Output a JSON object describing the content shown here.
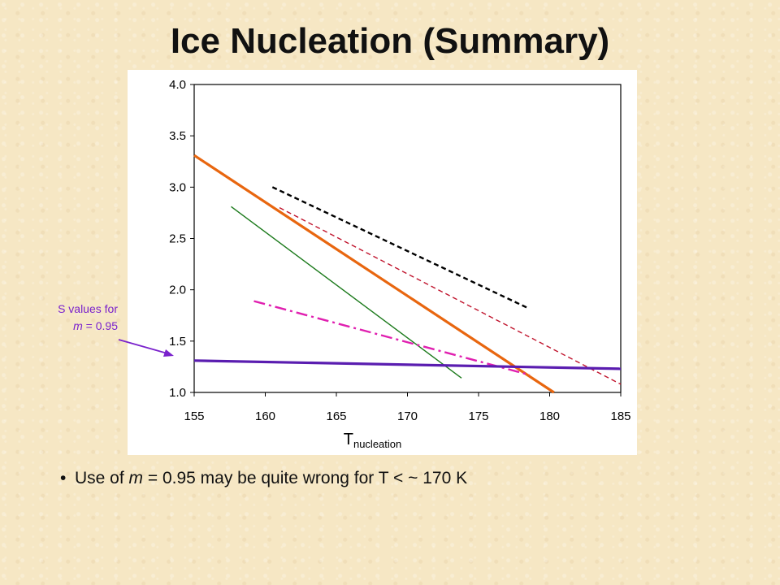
{
  "slide": {
    "title": "Ice Nucleation (Summary)",
    "callout": {
      "line1": "S values for",
      "line2_var": "m",
      "line2_rest": " = 0.95",
      "color": "#7a22cc"
    },
    "bullet": {
      "prefix": "Use of ",
      "var": "m",
      "rest": " = 0.95 may be quite wrong for T < ~ 170 K"
    }
  },
  "chart_data": {
    "type": "line",
    "title": "",
    "xlabel": "T",
    "xlabel_subscript": "nucleation",
    "ylabel": "",
    "xlim": [
      155,
      185
    ],
    "ylim": [
      1.0,
      4.0
    ],
    "x_ticks": [
      "155",
      "160",
      "165",
      "170",
      "175",
      "180",
      "185"
    ],
    "y_ticks": [
      "1.0",
      "1.5",
      "2.0",
      "2.5",
      "3.0",
      "3.5",
      "4.0"
    ],
    "grid": false,
    "legend": "none",
    "series": [
      {
        "color": "#e8660f",
        "style": "solid",
        "weight": "thick",
        "points": [
          [
            155,
            3.31
          ],
          [
            180.3,
            1.0
          ]
        ]
      },
      {
        "color": "#000000",
        "style": "dashed",
        "weight": "medium",
        "points": [
          [
            160.5,
            3.0
          ],
          [
            178.5,
            1.82
          ]
        ]
      },
      {
        "color": "#c0142d",
        "style": "dashed",
        "weight": "thin",
        "points": [
          [
            161,
            2.8
          ],
          [
            185,
            1.08
          ]
        ]
      },
      {
        "color": "#1c7a1c",
        "style": "solid",
        "weight": "thin",
        "points": [
          [
            157.6,
            2.81
          ],
          [
            173.8,
            1.14
          ]
        ]
      },
      {
        "color": "#e020b0",
        "style": "dashdot",
        "weight": "medium",
        "points": [
          [
            159.2,
            1.89
          ],
          [
            178.6,
            1.17
          ]
        ]
      },
      {
        "color": "#5a1db0",
        "style": "solid",
        "weight": "thick",
        "points": [
          [
            155,
            1.31
          ],
          [
            185,
            1.23
          ]
        ]
      }
    ]
  }
}
